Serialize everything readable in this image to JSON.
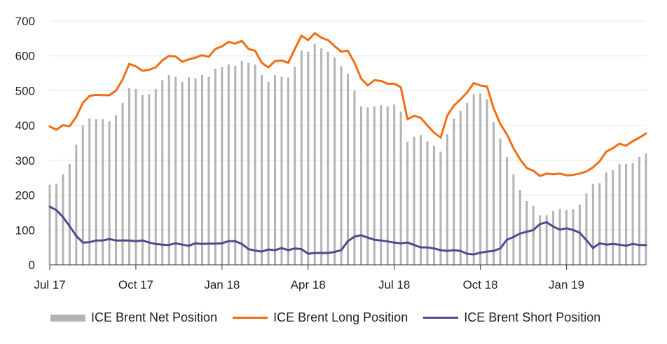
{
  "chart_data": {
    "type": "bar+line",
    "title": "",
    "xlabel": "",
    "ylabel": "",
    "ylim": [
      0,
      700
    ],
    "yticks": [
      0,
      100,
      200,
      300,
      400,
      500,
      600,
      700
    ],
    "xticks": [
      {
        "label": "Jul 17",
        "week": 0
      },
      {
        "label": "Oct 17",
        "week": 13
      },
      {
        "label": "Jan 18",
        "week": 26
      },
      {
        "label": "Apr 18",
        "week": 39
      },
      {
        "label": "Jul 18",
        "week": 52
      },
      {
        "label": "Oct 18",
        "week": 65
      },
      {
        "label": "Jan 19",
        "week": 78
      }
    ],
    "grid": "horizontal",
    "legend_position": "bottom",
    "x_unit": "weeks since Jul 17",
    "series": [
      {
        "name": "ICE Brent Net Position",
        "type": "bar",
        "color": "#b3b3b3",
        "values": [
          230,
          233,
          260,
          290,
          345,
          400,
          420,
          418,
          418,
          412,
          430,
          465,
          507,
          505,
          487,
          490,
          505,
          530,
          545,
          540,
          525,
          538,
          535,
          545,
          540,
          563,
          568,
          575,
          572,
          585,
          580,
          575,
          545,
          525,
          545,
          540,
          538,
          568,
          615,
          612,
          635,
          622,
          612,
          595,
          570,
          548,
          500,
          455,
          452,
          455,
          458,
          455,
          460,
          440,
          353,
          368,
          372,
          355,
          342,
          325,
          375,
          420,
          442,
          465,
          490,
          492,
          475,
          410,
          363,
          310,
          260,
          215,
          183,
          170,
          142,
          142,
          155,
          160,
          157,
          160,
          173,
          205,
          232,
          235,
          265,
          272,
          290,
          290,
          292,
          310,
          320
        ]
      },
      {
        "name": "ICE Brent Long Position",
        "type": "line",
        "color": "#f06e14",
        "values": [
          397,
          388,
          401,
          398,
          425,
          465,
          485,
          488,
          487,
          487,
          500,
          532,
          577,
          570,
          557,
          560,
          567,
          587,
          600,
          598,
          583,
          590,
          595,
          602,
          597,
          620,
          627,
          640,
          635,
          643,
          620,
          615,
          580,
          567,
          585,
          587,
          580,
          620,
          658,
          645,
          665,
          652,
          645,
          628,
          612,
          615,
          580,
          535,
          515,
          530,
          528,
          520,
          520,
          510,
          418,
          428,
          422,
          400,
          380,
          365,
          428,
          457,
          475,
          495,
          522,
          515,
          512,
          450,
          405,
          375,
          335,
          303,
          278,
          270,
          255,
          262,
          260,
          262,
          257,
          258,
          262,
          268,
          280,
          297,
          325,
          335,
          348,
          342,
          355,
          365,
          377
        ]
      },
      {
        "name": "ICE Brent Short Position",
        "type": "line",
        "color": "#4a4d8c",
        "values": [
          167,
          157,
          137,
          111,
          83,
          64,
          65,
          70,
          70,
          74,
          70,
          70,
          70,
          68,
          70,
          64,
          60,
          58,
          57,
          62,
          58,
          55,
          62,
          60,
          61,
          61,
          62,
          68,
          68,
          60,
          45,
          41,
          38,
          44,
          42,
          48,
          42,
          47,
          45,
          32,
          34,
          34,
          34,
          37,
          42,
          68,
          81,
          85,
          78,
          72,
          70,
          67,
          64,
          62,
          64,
          57,
          50,
          50,
          47,
          42,
          40,
          42,
          40,
          32,
          30,
          35,
          38,
          40,
          47,
          72,
          80,
          90,
          95,
          100,
          117,
          122,
          110,
          101,
          105,
          100,
          92,
          71,
          48,
          62,
          58,
          60,
          58,
          55,
          60,
          57,
          57
        ]
      }
    ]
  }
}
